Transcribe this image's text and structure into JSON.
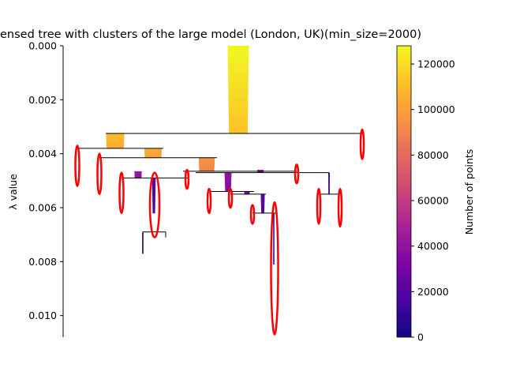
{
  "chart_data": {
    "type": "condensed-tree",
    "title": "ensed tree with clusters of the large model (London, UK)(min_size=2000)",
    "ylabel": "λ value",
    "ylim": [
      0.0,
      0.0108
    ],
    "y_inverted": true,
    "yticks": [
      0.0,
      0.002,
      0.004,
      0.006,
      0.008,
      0.01
    ],
    "ytick_labels": [
      "0.000",
      "0.002",
      "0.004",
      "0.006",
      "0.008",
      "0.010"
    ],
    "colorbar": {
      "label": "Number of points",
      "colormap": "plasma",
      "range": [
        0,
        128000
      ],
      "ticks": [
        0,
        20000,
        40000,
        60000,
        80000,
        100000,
        120000
      ],
      "tick_labels": [
        "0",
        "20000",
        "40000",
        "60000",
        "80000",
        "100000",
        "120000"
      ]
    },
    "bars": [
      {
        "lambda_birth": 0.0,
        "lambda_death": 0.00325,
        "points_start": 128000,
        "points_end": 112000
      },
      {
        "lambda_birth": 0.00325,
        "lambda_death": 0.0038,
        "points_start": 110000,
        "points_end": 104000
      },
      {
        "lambda_birth": 0.0038,
        "lambda_death": 0.00415,
        "points_start": 104000,
        "points_end": 100000
      },
      {
        "lambda_birth": 0.00415,
        "lambda_death": 0.00465,
        "points_start": 96000,
        "points_end": 90000
      },
      {
        "lambda_birth": 0.00465,
        "lambda_death": 0.0049,
        "points_start": 44000,
        "points_end": 40000
      },
      {
        "lambda_birth": 0.0049,
        "lambda_death": 0.0062,
        "points_start": 22000,
        "points_end": 14000
      },
      {
        "lambda_birth": 0.0047,
        "lambda_death": 0.0054,
        "points_start": 42000,
        "points_end": 34000
      },
      {
        "lambda_birth": 0.0054,
        "lambda_death": 0.0055,
        "points_start": 32000,
        "points_end": 30000
      },
      {
        "lambda_birth": 0.0046,
        "lambda_death": 0.0047,
        "points_start": 38000,
        "points_end": 36000
      },
      {
        "lambda_birth": 0.0055,
        "lambda_death": 0.0062,
        "points_start": 24000,
        "points_end": 18000
      },
      {
        "lambda_birth": 0.0062,
        "lambda_death": 0.0081,
        "points_start": 8000,
        "points_end": 4000
      },
      {
        "lambda_birth": 0.0047,
        "lambda_death": 0.0055,
        "points_start": 9000,
        "points_end": 8000
      },
      {
        "lambda_birth": 0.0069,
        "lambda_death": 0.0077,
        "points_start": 2000,
        "points_end": 2000
      }
    ],
    "selected_clusters": 12
  }
}
